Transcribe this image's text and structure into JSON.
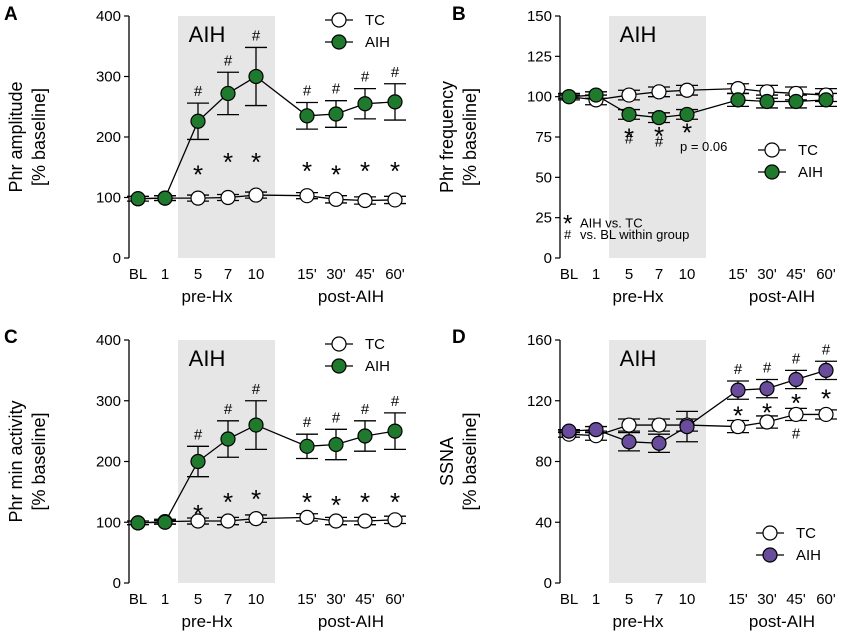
{
  "figure": {
    "aih_band_label": "AIH",
    "group_label_pre": "pre-Hx",
    "group_label_post": "post-AIH"
  },
  "colors": {
    "band": "#e6e6e6",
    "tc_fill": "#ffffff",
    "aih_green": "#1f7a2e",
    "aih_purple": "#6a4c9c",
    "line": "#000000"
  },
  "chart_data": [
    {
      "panel": "A",
      "type": "line",
      "categories": [
        "BL",
        "1",
        "5",
        "7",
        "10",
        "15'",
        "30'",
        "45'",
        "60'"
      ],
      "ylabel": "Phr amplitude",
      "ylabel2": "[% baseline]",
      "ylim": [
        0,
        400
      ],
      "yticks": [
        0,
        100,
        200,
        300,
        400
      ],
      "legend": "top-right",
      "series": [
        {
          "name": "TC",
          "values": [
            98,
            99,
            99,
            100,
            104,
            103,
            97,
            95,
            96
          ],
          "err": [
            4,
            4,
            5,
            5,
            5,
            5,
            6,
            6,
            6
          ]
        },
        {
          "name": "AIH",
          "values": [
            98,
            99,
            226,
            272,
            300,
            235,
            238,
            255,
            258
          ],
          "err": [
            0,
            4,
            30,
            35,
            48,
            22,
            22,
            25,
            30
          ]
        }
      ],
      "hash_marks": [
        "",
        "",
        "#",
        "#",
        "#",
        "#",
        "#",
        "#",
        "#"
      ],
      "star_marks": [
        "",
        "",
        "*",
        "*",
        "*",
        "*",
        "*",
        "*",
        "*"
      ],
      "star_values": [
        0,
        0,
        150,
        170,
        170,
        155,
        150,
        155,
        155
      ],
      "annotations": []
    },
    {
      "panel": "B",
      "type": "line",
      "categories": [
        "BL",
        "1",
        "5",
        "7",
        "10",
        "15'",
        "30'",
        "45'",
        "60'"
      ],
      "ylabel": "Phr frequency",
      "ylabel2": "[% baseline]",
      "ylim": [
        0,
        150
      ],
      "yticks": [
        0,
        25,
        50,
        75,
        100,
        125,
        150
      ],
      "legend": "middle-right",
      "series": [
        {
          "name": "TC",
          "values": [
            100,
            98,
            101,
            103,
            104,
            105,
            103,
            102,
            101
          ],
          "err": [
            2,
            3,
            3,
            3,
            3,
            3,
            4,
            4,
            4
          ]
        },
        {
          "name": "AIH",
          "values": [
            100,
            101,
            89,
            87,
            89,
            98,
            97,
            97,
            98
          ],
          "err": [
            1,
            2,
            3,
            3,
            3,
            4,
            4,
            4,
            4
          ]
        }
      ],
      "hash_marks": [
        "",
        "",
        "#",
        "#",
        "",
        "",
        "",
        "",
        ""
      ],
      "star_marks": [
        "",
        "",
        "*",
        "*",
        "*",
        "",
        "",
        "",
        ""
      ],
      "star_values": [
        0,
        0,
        79,
        80,
        82,
        0,
        0,
        0,
        0
      ],
      "annotations": [
        "p = 0.06"
      ],
      "key_lines": [
        "AIH vs. TC",
        "vs. BL within group"
      ]
    },
    {
      "panel": "C",
      "type": "line",
      "categories": [
        "BL",
        "1",
        "5",
        "7",
        "10",
        "15'",
        "30'",
        "45'",
        "60'"
      ],
      "ylabel": "Phr min activity",
      "ylabel2": "[% baseline]",
      "ylim": [
        0,
        400
      ],
      "yticks": [
        0,
        100,
        200,
        300,
        400
      ],
      "legend": "top-right",
      "series": [
        {
          "name": "TC",
          "values": [
            99,
            101,
            102,
            102,
            106,
            108,
            102,
            102,
            104
          ],
          "err": [
            3,
            4,
            5,
            6,
            6,
            6,
            6,
            6,
            6
          ]
        },
        {
          "name": "AIH",
          "values": [
            99,
            100,
            200,
            237,
            260,
            225,
            228,
            242,
            250
          ],
          "err": [
            0,
            3,
            25,
            30,
            40,
            20,
            25,
            25,
            30
          ]
        }
      ],
      "hash_marks": [
        "",
        "",
        "#",
        "#",
        "#",
        "#",
        "#",
        "#",
        "#"
      ],
      "star_marks": [
        "",
        "",
        "*",
        "*",
        "*",
        "*",
        "*",
        "*",
        "*"
      ],
      "star_values": [
        0,
        0,
        125,
        145,
        150,
        145,
        140,
        145,
        145
      ],
      "annotations": []
    },
    {
      "panel": "D",
      "type": "line",
      "categories": [
        "BL",
        "1",
        "5",
        "7",
        "10",
        "15'",
        "30'",
        "45'",
        "60'"
      ],
      "ylabel": "SSNA",
      "ylabel2": "[% baseline]",
      "ylim": [
        0,
        160
      ],
      "yticks": [
        0,
        40,
        80,
        120,
        160
      ],
      "legend": "bottom-right",
      "series": [
        {
          "name": "TC",
          "values": [
            98,
            97,
            104,
            104,
            104,
            103,
            106,
            111,
            111
          ],
          "err": [
            2,
            3,
            4,
            4,
            4,
            4,
            4,
            4,
            3
          ]
        },
        {
          "name": "AIH",
          "values": [
            100,
            101,
            93,
            92,
            103,
            127,
            128,
            134,
            140
          ],
          "err": [
            1,
            2,
            6,
            6,
            10,
            6,
            6,
            6,
            6
          ]
        }
      ],
      "hash_marks": [
        "",
        "",
        "",
        "",
        "",
        "#",
        "#",
        "#",
        "#"
      ],
      "star_marks": [
        "",
        "",
        "",
        "",
        "",
        "*",
        "*",
        "*",
        "*"
      ],
      "star_values": [
        0,
        0,
        0,
        0,
        0,
        115,
        117,
        123,
        126
      ],
      "tc_hash_marks": [
        "",
        "",
        "",
        "",
        "",
        "",
        "",
        "#",
        ""
      ],
      "annotations": []
    }
  ]
}
